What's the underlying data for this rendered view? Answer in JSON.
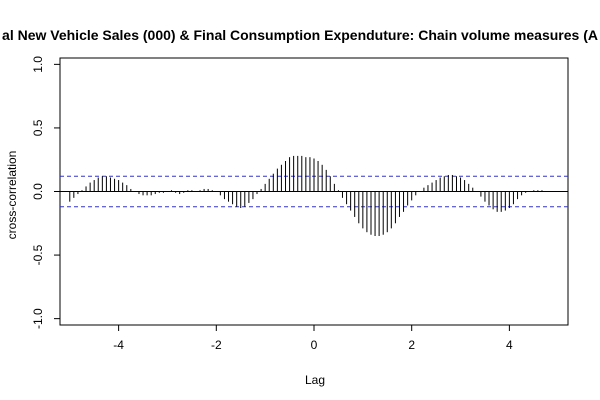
{
  "chart_data": {
    "type": "bar",
    "title": "al New Vehicle Sales (000) & Final Consumption Expenduture: Chain volume measures (A",
    "xlabel": "Lag",
    "ylabel": "cross-correlation",
    "xlim": [
      -5.2,
      5.2
    ],
    "ylim": [
      -1.05,
      1.05
    ],
    "x_ticks": [
      -4,
      -2,
      0,
      2,
      4
    ],
    "x_tick_labels": [
      "-4",
      "-2",
      "0",
      "2",
      "4"
    ],
    "y_ticks": [
      -1.0,
      -0.5,
      0.0,
      0.5,
      1.0
    ],
    "y_tick_labels": [
      "-1.0",
      "-0.5",
      "0.0",
      "0.5",
      "1.0"
    ],
    "confidence_bound": 0.12,
    "colors": {
      "bars": "#000000",
      "bounds": "#3333cc",
      "zero_line": "#000000"
    },
    "x": [
      -5.0,
      -4.917,
      -4.833,
      -4.75,
      -4.667,
      -4.583,
      -4.5,
      -4.417,
      -4.333,
      -4.25,
      -4.167,
      -4.083,
      -4.0,
      -3.917,
      -3.833,
      -3.75,
      -3.667,
      -3.583,
      -3.5,
      -3.417,
      -3.333,
      -3.25,
      -3.167,
      -3.083,
      -3.0,
      -2.917,
      -2.833,
      -2.75,
      -2.667,
      -2.583,
      -2.5,
      -2.417,
      -2.333,
      -2.25,
      -2.167,
      -2.083,
      -2.0,
      -1.917,
      -1.833,
      -1.75,
      -1.667,
      -1.583,
      -1.5,
      -1.417,
      -1.333,
      -1.25,
      -1.167,
      -1.083,
      -1.0,
      -0.917,
      -0.833,
      -0.75,
      -0.667,
      -0.583,
      -0.5,
      -0.417,
      -0.333,
      -0.25,
      -0.167,
      -0.083,
      0.0,
      0.083,
      0.167,
      0.25,
      0.333,
      0.417,
      0.5,
      0.583,
      0.667,
      0.75,
      0.833,
      0.917,
      1.0,
      1.083,
      1.167,
      1.25,
      1.333,
      1.417,
      1.5,
      1.583,
      1.667,
      1.75,
      1.833,
      1.917,
      2.0,
      2.083,
      2.167,
      2.25,
      2.333,
      2.417,
      2.5,
      2.583,
      2.667,
      2.75,
      2.833,
      2.917,
      3.0,
      3.083,
      3.167,
      3.25,
      3.333,
      3.417,
      3.5,
      3.583,
      3.667,
      3.75,
      3.833,
      3.917,
      4.0,
      4.083,
      4.167,
      4.25,
      4.333,
      4.417,
      4.5,
      4.583,
      4.667,
      4.75,
      4.833,
      4.917,
      5.0
    ],
    "values": [
      -0.08,
      -0.05,
      -0.02,
      0.01,
      0.04,
      0.07,
      0.09,
      0.11,
      0.12,
      0.12,
      0.11,
      0.1,
      0.09,
      0.07,
      0.05,
      0.02,
      0.0,
      -0.02,
      -0.03,
      -0.03,
      -0.03,
      -0.02,
      -0.01,
      -0.01,
      0.0,
      0.01,
      -0.01,
      -0.02,
      -0.01,
      0.01,
      0.01,
      0.0,
      0.01,
      0.02,
      0.02,
      0.01,
      0.0,
      -0.03,
      -0.06,
      -0.08,
      -0.1,
      -0.12,
      -0.13,
      -0.12,
      -0.09,
      -0.06,
      -0.02,
      0.02,
      0.06,
      0.1,
      0.14,
      0.18,
      0.21,
      0.24,
      0.27,
      0.28,
      0.28,
      0.28,
      0.27,
      0.27,
      0.26,
      0.24,
      0.21,
      0.17,
      0.12,
      0.06,
      0.01,
      -0.05,
      -0.1,
      -0.15,
      -0.2,
      -0.25,
      -0.29,
      -0.32,
      -0.34,
      -0.35,
      -0.35,
      -0.34,
      -0.32,
      -0.29,
      -0.25,
      -0.2,
      -0.16,
      -0.11,
      -0.07,
      -0.03,
      0.0,
      0.03,
      0.05,
      0.07,
      0.09,
      0.11,
      0.12,
      0.13,
      0.13,
      0.12,
      0.11,
      0.09,
      0.06,
      0.03,
      0.0,
      -0.04,
      -0.08,
      -0.11,
      -0.14,
      -0.16,
      -0.16,
      -0.15,
      -0.13,
      -0.1,
      -0.06,
      -0.03,
      -0.01,
      0.0,
      0.01,
      0.01,
      0.01,
      0.0,
      0.0,
      0.0,
      0.0
    ]
  }
}
